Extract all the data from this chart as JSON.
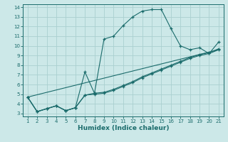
{
  "title": "",
  "xlabel": "Humidex (Indice chaleur)",
  "xlim": [
    0.5,
    21.5
  ],
  "ylim": [
    2.7,
    14.3
  ],
  "yticks": [
    3,
    4,
    5,
    6,
    7,
    8,
    9,
    10,
    11,
    12,
    13,
    14
  ],
  "xticks": [
    1,
    2,
    3,
    4,
    5,
    6,
    7,
    8,
    9,
    10,
    11,
    12,
    13,
    14,
    15,
    16,
    17,
    18,
    19,
    20,
    21
  ],
  "line_color": "#1a6b6b",
  "bg_color": "#cce8e8",
  "grid_color": "#aad0d0",
  "lines": [
    {
      "x": [
        1,
        2,
        3,
        4,
        5,
        6,
        7,
        8,
        9,
        10,
        11,
        12,
        13,
        14,
        15,
        16,
        17,
        18,
        19,
        20,
        21
      ],
      "y": [
        4.7,
        3.2,
        3.5,
        3.8,
        3.3,
        3.6,
        4.9,
        5.1,
        10.7,
        11.0,
        12.1,
        13.0,
        13.6,
        13.75,
        13.75,
        11.8,
        10.0,
        9.6,
        9.8,
        9.2,
        10.4
      ]
    },
    {
      "x": [
        1,
        2,
        3,
        4,
        5,
        6,
        7,
        8,
        9,
        10,
        11,
        12,
        13,
        14,
        15,
        16,
        17,
        18,
        19,
        20,
        21
      ],
      "y": [
        4.7,
        3.2,
        3.5,
        3.8,
        3.3,
        3.6,
        7.3,
        5.1,
        5.2,
        5.5,
        5.9,
        6.3,
        6.8,
        7.2,
        7.6,
        8.0,
        8.4,
        8.8,
        9.1,
        9.3,
        9.7
      ]
    },
    {
      "x": [
        1,
        2,
        3,
        4,
        5,
        6,
        7,
        8,
        9,
        10,
        11,
        12,
        13,
        14,
        15,
        16,
        17,
        18,
        19,
        20,
        21
      ],
      "y": [
        4.7,
        3.2,
        3.5,
        3.8,
        3.3,
        3.6,
        4.9,
        5.0,
        5.1,
        5.4,
        5.8,
        6.2,
        6.7,
        7.1,
        7.5,
        7.9,
        8.3,
        8.7,
        9.0,
        9.2,
        9.6
      ]
    },
    {
      "x": [
        1,
        21
      ],
      "y": [
        4.7,
        9.6
      ]
    }
  ]
}
